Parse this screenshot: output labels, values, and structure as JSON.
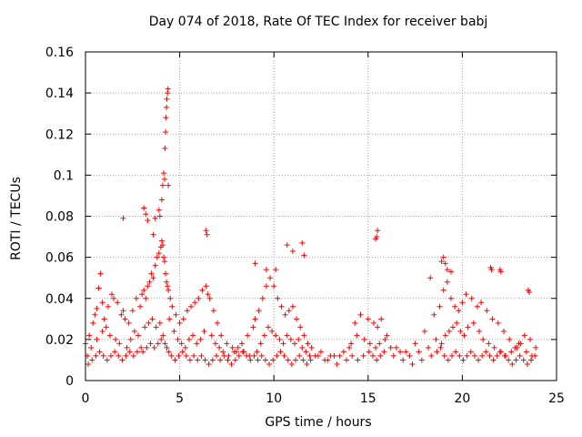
{
  "chart_data": {
    "type": "scatter",
    "title": "Day 074 of 2018, Rate Of TEC Index for receiver babj",
    "xlabel": "GPS time / hours",
    "ylabel": "ROTI / TECUs",
    "xlim": [
      0,
      25
    ],
    "ylim": [
      0,
      0.16
    ],
    "xticks": [
      0,
      5,
      10,
      15,
      20,
      25
    ],
    "yticks": [
      0,
      0.02,
      0.04,
      0.06,
      0.08,
      0.1,
      0.12,
      0.14,
      0.16
    ],
    "ytick_labels": [
      "0",
      "0.02",
      "0.04",
      "0.06",
      "0.08",
      "0.1",
      "0.12",
      "0.14",
      "0.16"
    ],
    "grid": true,
    "marker": "+",
    "color": "#ff0000",
    "series": [
      {
        "name": "ROTI",
        "x": [
          0.0,
          0.2,
          0.4,
          0.5,
          0.6,
          0.7,
          0.8,
          0.9,
          1.0,
          1.2,
          1.4,
          1.5,
          1.7,
          1.9,
          2.0,
          2.1,
          2.3,
          2.5,
          2.7,
          2.9,
          3.0,
          3.1,
          3.2,
          3.3,
          3.4,
          3.5,
          3.6,
          3.7,
          3.8,
          3.9,
          4.0,
          4.05,
          4.1,
          4.15,
          4.2,
          4.25,
          4.3,
          4.35,
          4.4,
          4.5,
          4.6,
          4.8,
          5.0,
          5.2,
          5.4,
          5.6,
          5.8,
          6.0,
          6.2,
          6.4,
          6.5,
          6.6,
          6.8,
          7.0,
          7.2,
          7.5,
          7.8,
          8.0,
          8.3,
          8.6,
          8.9,
          9.0,
          9.2,
          9.4,
          9.6,
          9.8,
          10.0,
          10.2,
          10.4,
          10.6,
          10.8,
          11.0,
          11.2,
          11.4,
          11.6,
          11.8,
          12.0,
          12.5,
          13.0,
          13.5,
          14.0,
          14.3,
          14.6,
          15.0,
          15.3,
          15.5,
          15.7,
          16.0,
          16.5,
          17.0,
          17.5,
          18.0,
          18.5,
          18.8,
          19.0,
          19.2,
          19.4,
          19.6,
          19.8,
          20.0,
          20.2,
          20.5,
          20.8,
          21.0,
          21.3,
          21.6,
          21.9,
          22.2,
          22.5,
          22.8,
          23.0,
          23.3,
          23.6,
          23.9,
          0.1,
          0.3,
          0.6,
          0.9,
          1.1,
          1.3,
          1.6,
          1.8,
          2.2,
          2.4,
          2.6,
          2.8,
          3.15,
          3.35,
          3.55,
          3.75,
          3.95,
          4.45,
          4.7,
          4.9,
          5.1,
          5.3,
          5.5,
          5.7,
          5.9,
          6.1,
          6.3,
          6.7,
          6.9,
          7.1,
          7.3,
          7.6,
          7.9,
          8.1,
          8.4,
          8.7,
          9.1,
          9.3,
          9.5,
          9.7,
          9.9,
          10.1,
          10.3,
          10.5,
          10.7,
          10.9,
          11.1,
          11.3,
          11.5,
          11.7,
          11.9,
          12.2,
          12.7,
          13.2,
          13.7,
          14.1,
          14.4,
          14.8,
          15.1,
          15.4,
          15.6,
          15.9,
          16.2,
          16.7,
          17.2,
          17.7,
          18.2,
          18.6,
          18.9,
          19.1,
          19.3,
          19.5,
          19.7,
          19.9,
          20.1,
          20.3,
          20.6,
          20.9,
          21.1,
          21.4,
          21.7,
          22.0,
          22.3,
          22.6,
          22.9,
          23.1,
          23.4,
          23.7,
          0.15,
          0.35,
          0.55,
          0.75,
          0.95,
          1.15,
          1.35,
          1.55,
          1.75,
          1.95,
          2.15,
          2.35,
          2.55,
          2.75,
          2.95,
          3.05,
          3.25,
          3.45,
          3.65,
          3.85,
          4.02,
          4.12,
          4.22,
          4.32,
          4.42,
          4.55,
          4.75,
          4.95,
          5.15,
          5.35,
          5.55,
          5.75,
          5.95,
          6.15,
          6.35,
          6.55,
          6.75,
          6.95,
          7.15,
          7.35,
          7.55,
          7.75,
          7.95,
          8.15,
          8.35,
          8.55,
          8.75,
          8.95,
          9.15,
          9.35,
          9.55,
          9.75,
          9.95,
          10.15,
          10.35,
          10.55,
          10.75,
          10.95,
          11.15,
          11.35,
          11.55,
          11.75,
          11.95,
          12.35,
          12.85,
          13.35,
          13.85,
          14.15,
          14.45,
          14.75,
          15.05,
          15.25,
          15.45,
          15.65,
          15.85,
          16.35,
          16.85,
          17.35,
          17.85,
          18.35,
          18.65,
          18.85,
          19.05,
          19.25,
          19.45,
          19.65,
          19.85,
          20.05,
          20.25,
          20.45,
          20.65,
          20.85,
          21.05,
          21.25,
          21.45,
          21.65,
          21.85,
          22.05,
          22.25,
          22.45,
          22.65,
          22.85,
          23.05,
          23.25,
          23.45,
          23.65,
          23.85,
          2.0,
          3.1,
          3.2,
          3.3,
          3.6,
          3.7,
          3.9,
          3.95,
          4.05,
          4.1,
          4.15,
          4.2,
          4.22,
          4.25,
          4.27,
          4.3,
          4.32,
          4.35,
          4.38,
          4.4,
          6.4,
          6.45,
          9.0,
          9.6,
          10.1,
          10.7,
          11.0,
          11.5,
          11.6,
          15.4,
          15.45,
          15.5,
          18.3,
          18.9,
          19.0,
          19.1,
          19.2,
          19.4,
          21.5,
          21.55,
          22.0,
          22.05,
          23.5,
          23.55
        ],
        "y": [
          0.018,
          0.022,
          0.028,
          0.032,
          0.035,
          0.045,
          0.052,
          0.038,
          0.03,
          0.036,
          0.042,
          0.04,
          0.038,
          0.032,
          0.034,
          0.03,
          0.028,
          0.034,
          0.04,
          0.036,
          0.042,
          0.044,
          0.04,
          0.046,
          0.048,
          0.052,
          0.05,
          0.056,
          0.06,
          0.062,
          0.065,
          0.068,
          0.066,
          0.06,
          0.058,
          0.052,
          0.048,
          0.046,
          0.044,
          0.04,
          0.036,
          0.032,
          0.028,
          0.03,
          0.034,
          0.036,
          0.038,
          0.04,
          0.044,
          0.046,
          0.042,
          0.04,
          0.034,
          0.028,
          0.022,
          0.018,
          0.016,
          0.014,
          0.018,
          0.022,
          0.026,
          0.03,
          0.034,
          0.04,
          0.046,
          0.05,
          0.046,
          0.04,
          0.036,
          0.032,
          0.034,
          0.036,
          0.03,
          0.026,
          0.022,
          0.018,
          0.016,
          0.014,
          0.012,
          0.012,
          0.016,
          0.028,
          0.032,
          0.03,
          0.028,
          0.026,
          0.03,
          0.022,
          0.016,
          0.014,
          0.018,
          0.024,
          0.032,
          0.036,
          0.044,
          0.048,
          0.04,
          0.036,
          0.034,
          0.038,
          0.042,
          0.04,
          0.036,
          0.038,
          0.034,
          0.03,
          0.028,
          0.024,
          0.02,
          0.016,
          0.018,
          0.022,
          0.02,
          0.016,
          0.012,
          0.016,
          0.02,
          0.024,
          0.026,
          0.022,
          0.02,
          0.018,
          0.016,
          0.02,
          0.024,
          0.022,
          0.026,
          0.028,
          0.03,
          0.026,
          0.028,
          0.03,
          0.024,
          0.02,
          0.018,
          0.016,
          0.02,
          0.022,
          0.018,
          0.02,
          0.024,
          0.022,
          0.018,
          0.016,
          0.014,
          0.012,
          0.014,
          0.016,
          0.014,
          0.012,
          0.014,
          0.018,
          0.022,
          0.026,
          0.024,
          0.022,
          0.02,
          0.018,
          0.022,
          0.02,
          0.018,
          0.02,
          0.016,
          0.014,
          0.012,
          0.012,
          0.01,
          0.012,
          0.014,
          0.018,
          0.022,
          0.02,
          0.018,
          0.016,
          0.018,
          0.02,
          0.016,
          0.014,
          0.012,
          0.014,
          0.016,
          0.02,
          0.018,
          0.022,
          0.024,
          0.026,
          0.028,
          0.024,
          0.022,
          0.026,
          0.028,
          0.024,
          0.02,
          0.018,
          0.016,
          0.014,
          0.012,
          0.014,
          0.016,
          0.018,
          0.014,
          0.012,
          0.008,
          0.01,
          0.012,
          0.014,
          0.012,
          0.01,
          0.012,
          0.014,
          0.012,
          0.01,
          0.012,
          0.014,
          0.012,
          0.014,
          0.016,
          0.014,
          0.016,
          0.018,
          0.016,
          0.018,
          0.02,
          0.022,
          0.018,
          0.016,
          0.014,
          0.012,
          0.01,
          0.012,
          0.014,
          0.012,
          0.01,
          0.012,
          0.01,
          0.012,
          0.01,
          0.008,
          0.01,
          0.012,
          0.01,
          0.012,
          0.01,
          0.008,
          0.01,
          0.012,
          0.014,
          0.012,
          0.01,
          0.012,
          0.01,
          0.012,
          0.01,
          0.008,
          0.01,
          0.012,
          0.014,
          0.012,
          0.01,
          0.008,
          0.01,
          0.012,
          0.01,
          0.008,
          0.01,
          0.012,
          0.01,
          0.008,
          0.01,
          0.012,
          0.01,
          0.012,
          0.014,
          0.012,
          0.01,
          0.012,
          0.014,
          0.012,
          0.01,
          0.008,
          0.01,
          0.012,
          0.014,
          0.016,
          0.012,
          0.01,
          0.012,
          0.014,
          0.012,
          0.01,
          0.012,
          0.014,
          0.012,
          0.01,
          0.012,
          0.014,
          0.012,
          0.01,
          0.012,
          0.014,
          0.012,
          0.01,
          0.008,
          0.01,
          0.012,
          0.01,
          0.008,
          0.01,
          0.012,
          0.079,
          0.084,
          0.081,
          0.078,
          0.071,
          0.079,
          0.083,
          0.08,
          0.088,
          0.095,
          0.101,
          0.098,
          0.113,
          0.121,
          0.128,
          0.133,
          0.137,
          0.14,
          0.142,
          0.095,
          0.073,
          0.071,
          0.057,
          0.054,
          0.054,
          0.066,
          0.063,
          0.067,
          0.061,
          0.069,
          0.07,
          0.073,
          0.05,
          0.058,
          0.06,
          0.057,
          0.054,
          0.053,
          0.055,
          0.054,
          0.054,
          0.053,
          0.044,
          0.043
        ]
      }
    ]
  }
}
